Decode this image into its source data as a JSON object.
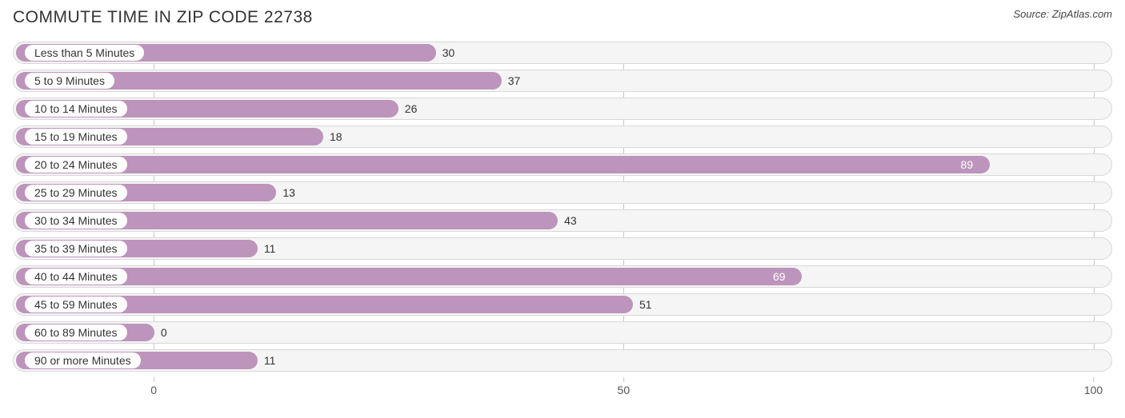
{
  "title": "COMMUTE TIME IN ZIP CODE 22738",
  "source": "Source: ZipAtlas.com",
  "chart": {
    "type": "bar-horizontal",
    "background_color": "#ffffff",
    "track_bg": "#f5f5f5",
    "track_border": "#d7d7d7",
    "bar_color": "#bd94bb",
    "grid_color": "#c8c8c8",
    "title_fontsize": 21,
    "label_fontsize": 14,
    "value_fontsize": 14,
    "xmin": -15,
    "xmax": 102,
    "ticks": [
      0,
      50,
      100
    ],
    "value_inside_threshold": 60,
    "categories": [
      {
        "label": "Less than 5 Minutes",
        "value": 30
      },
      {
        "label": "5 to 9 Minutes",
        "value": 37
      },
      {
        "label": "10 to 14 Minutes",
        "value": 26
      },
      {
        "label": "15 to 19 Minutes",
        "value": 18
      },
      {
        "label": "20 to 24 Minutes",
        "value": 89
      },
      {
        "label": "25 to 29 Minutes",
        "value": 13
      },
      {
        "label": "30 to 34 Minutes",
        "value": 43
      },
      {
        "label": "35 to 39 Minutes",
        "value": 11
      },
      {
        "label": "40 to 44 Minutes",
        "value": 69
      },
      {
        "label": "45 to 59 Minutes",
        "value": 51
      },
      {
        "label": "60 to 89 Minutes",
        "value": 0
      },
      {
        "label": "90 or more Minutes",
        "value": 11
      }
    ]
  }
}
